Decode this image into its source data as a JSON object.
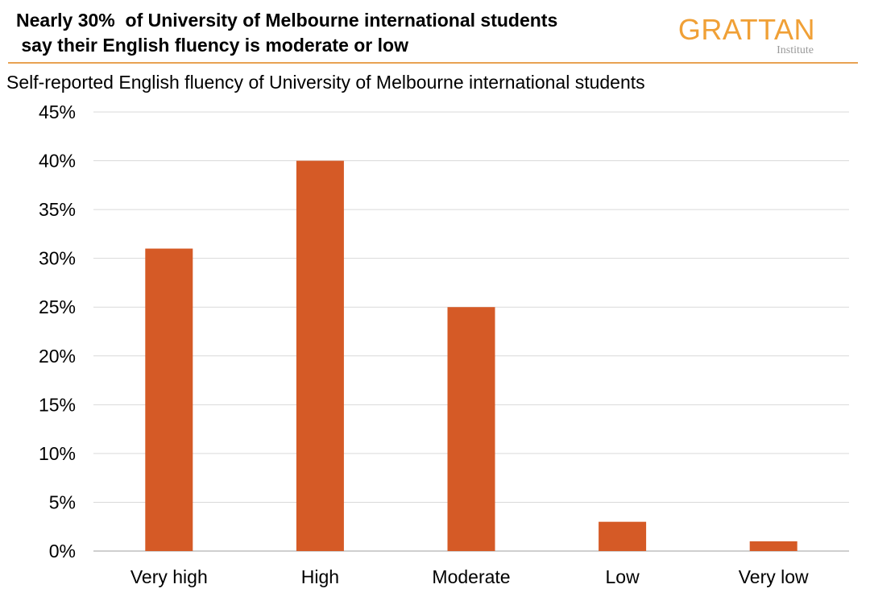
{
  "header": {
    "title_line1": "Nearly 30%  of University of Melbourne international students",
    "title_line2": " say their English fluency is moderate or low",
    "logo_word": "GRATTAN",
    "logo_sub": "Institute"
  },
  "colors": {
    "bar": "#d55a26",
    "logo": "#f0a036",
    "rule": "#e8a252",
    "grid": "#d9d9d9"
  },
  "chart_data": {
    "type": "bar",
    "title": "Self-reported English fluency of University of Melbourne international students",
    "xlabel": "",
    "ylabel": "",
    "categories": [
      "Very high",
      "High",
      "Moderate",
      "Low",
      "Very low"
    ],
    "values": [
      31,
      40,
      25,
      3,
      1
    ],
    "ylim": [
      0,
      45
    ],
    "yticks": [
      0,
      5,
      10,
      15,
      20,
      25,
      30,
      35,
      40,
      45
    ],
    "ytick_labels": [
      "0%",
      "5%",
      "10%",
      "15%",
      "20%",
      "25%",
      "30%",
      "35%",
      "40%",
      "45%"
    ],
    "grid": true,
    "legend": "none"
  }
}
